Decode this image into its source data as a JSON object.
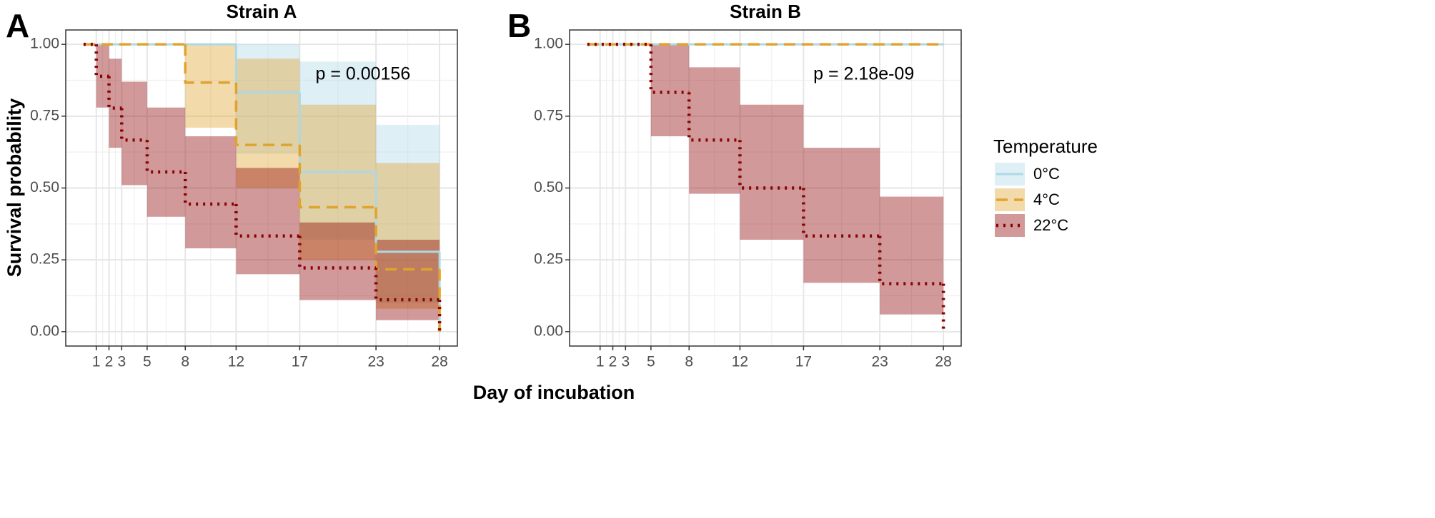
{
  "chart_data": [
    {
      "type": "step",
      "panel_label": "A",
      "title": "Strain A",
      "ylabel": "Survival probability",
      "xlabel": "Day of incubation",
      "legend_title": "Temperature",
      "annotation": "p = 0.00156",
      "xlim": [
        -1.4,
        29.4
      ],
      "xticks": [
        1,
        2,
        3,
        5,
        8,
        12,
        17,
        23,
        28
      ],
      "ylim": [
        -0.05,
        1.05
      ],
      "yticks": [
        {
          "value": 0,
          "label": "0.00"
        },
        {
          "value": 0.25,
          "label": "0.25"
        },
        {
          "value": 0.5,
          "label": "0.50"
        },
        {
          "value": 0.75,
          "label": "0.75"
        },
        {
          "value": 1,
          "label": "1.00"
        }
      ],
      "grid": true,
      "series": [
        {
          "name": "0°C",
          "color": "#add8e6",
          "dash": "solid",
          "x": [
            0,
            12,
            17,
            23,
            28
          ],
          "values": [
            1,
            0.833,
            0.556,
            0.278,
            0
          ],
          "lower": [
            1,
            0.62,
            0.32,
            0.1,
            null
          ],
          "upper": [
            1,
            1,
            0.94,
            0.72,
            null
          ]
        },
        {
          "name": "4°C",
          "color": "#e0a32e",
          "dash": "dashed",
          "x": [
            0,
            8,
            12,
            17,
            23,
            28
          ],
          "values": [
            1,
            0.867,
            0.65,
            0.433,
            0.217,
            0
          ],
          "lower": [
            1,
            0.71,
            0.5,
            0.25,
            0.08,
            null
          ],
          "upper": [
            1,
            1,
            0.95,
            0.79,
            0.587,
            null
          ]
        },
        {
          "name": "22°C",
          "color": "#8b0000",
          "dash": "dotted",
          "x": [
            0,
            1,
            2,
            3,
            5,
            8,
            12,
            17,
            23,
            28
          ],
          "values": [
            1,
            0.889,
            0.778,
            0.667,
            0.556,
            0.444,
            0.333,
            0.222,
            0.111,
            0
          ],
          "lower": [
            1,
            0.78,
            0.64,
            0.51,
            0.4,
            0.29,
            0.2,
            0.11,
            0.04,
            null
          ],
          "upper": [
            1,
            1,
            0.95,
            0.87,
            0.78,
            0.68,
            0.57,
            0.38,
            0.32,
            null
          ]
        }
      ]
    },
    {
      "type": "step",
      "panel_label": "B",
      "title": "Strain B",
      "annotation": "p = 2.18e-09",
      "xlim": [
        -1.4,
        29.4
      ],
      "xticks": [
        1,
        2,
        3,
        5,
        8,
        12,
        17,
        23,
        28
      ],
      "ylim": [
        -0.05,
        1.05
      ],
      "yticks": [
        {
          "value": 0,
          "label": "0.00"
        },
        {
          "value": 0.25,
          "label": "0.25"
        },
        {
          "value": 0.5,
          "label": "0.50"
        },
        {
          "value": 0.75,
          "label": "0.75"
        },
        {
          "value": 1,
          "label": "1.00"
        }
      ],
      "grid": true,
      "series": [
        {
          "color": "#add8e6",
          "dash": "solid",
          "x": [
            0,
            28
          ],
          "values": [
            1,
            1
          ],
          "lower": [
            1,
            null
          ],
          "upper": [
            1,
            null
          ]
        },
        {
          "color": "#e0a32e",
          "dash": "dashed",
          "x": [
            0,
            28
          ],
          "values": [
            1,
            1
          ],
          "lower": [
            1,
            null
          ],
          "upper": [
            1,
            null
          ]
        },
        {
          "color": "#8b0000",
          "dash": "dotted",
          "x": [
            0,
            5,
            8,
            12,
            17,
            23,
            28
          ],
          "values": [
            1,
            0.833,
            0.667,
            0.5,
            0.333,
            0.167,
            0
          ],
          "lower": [
            1,
            0.68,
            0.48,
            0.32,
            0.17,
            0.06,
            null
          ],
          "upper": [
            1,
            1,
            0.92,
            0.79,
            0.64,
            0.47,
            null
          ]
        }
      ]
    }
  ]
}
